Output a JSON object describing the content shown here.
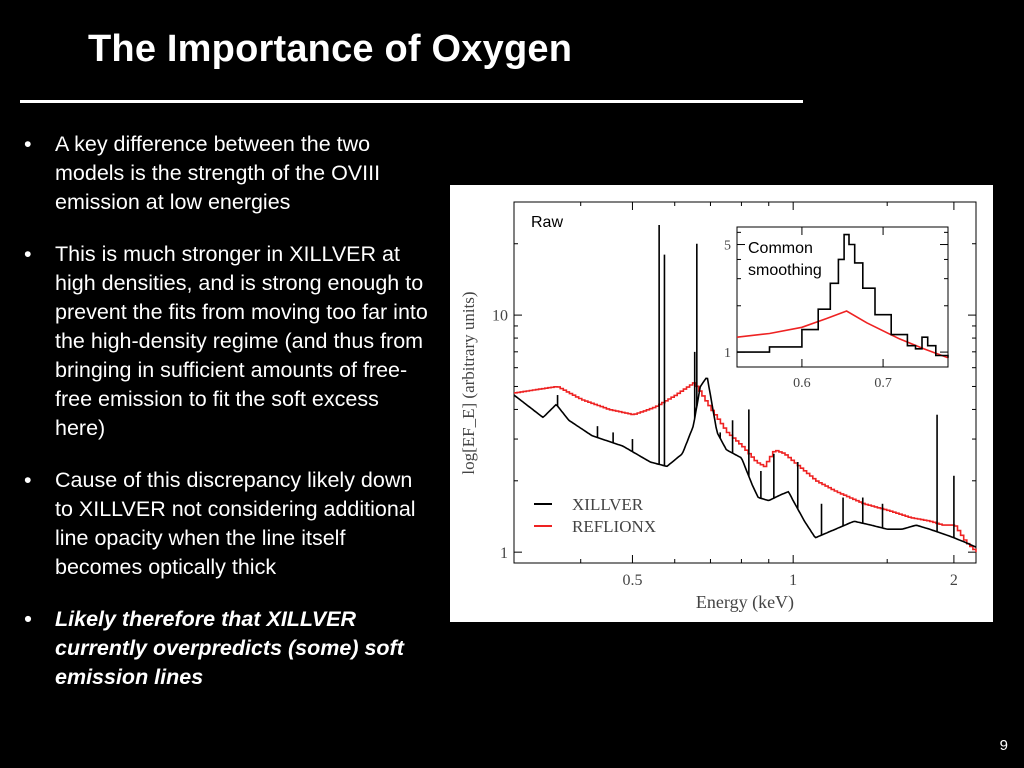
{
  "slide": {
    "title": "The Importance of Oxygen",
    "page_number": "9"
  },
  "bullets": [
    {
      "text": "A key difference between the two models is the strength of the OVIII emission at low energies",
      "emphasis": false
    },
    {
      "text": "This is much stronger in XILLVER at high densities, and is strong enough to prevent the fits from moving too far into the high-density regime (and thus from bringing in sufficient amounts of free-free emission to fit the soft excess here)",
      "emphasis": false
    },
    {
      "text": "Cause of this discrepancy likely down to XILLVER not considering additional line opacity when the line itself becomes optically thick",
      "emphasis": false
    },
    {
      "text": "Likely therefore that XILLVER currently overpredicts (some) soft emission lines",
      "emphasis": true
    }
  ],
  "bullet_marker": "•",
  "colors": {
    "background": "#000000",
    "text": "#ffffff",
    "xillver": "#000000",
    "reflionx": "#ee2222",
    "figure_bg": "#ffffff"
  },
  "chart_data": [
    {
      "type": "line",
      "panel": "main",
      "annotation": "Raw",
      "xlabel": "Energy (keV)",
      "ylabel": "log[EF_E] (arbitrary units)",
      "x_scale": "log",
      "y_scale": "log",
      "xlim": [
        0.3,
        2.2
      ],
      "ylim": [
        0.9,
        30
      ],
      "x_ticks": [
        0.5,
        1,
        2
      ],
      "x_tick_labels": [
        "0.5",
        "1",
        "2"
      ],
      "y_ticks": [
        1,
        10
      ],
      "y_tick_labels": [
        "1",
        "10"
      ],
      "legend": {
        "location": "lower-left",
        "entries": [
          "XILLVER",
          "REFLIONX"
        ]
      },
      "series": [
        {
          "name": "XILLVER",
          "color": "#000000",
          "x": [
            0.3,
            0.34,
            0.36,
            0.38,
            0.42,
            0.48,
            0.54,
            0.58,
            0.62,
            0.65,
            0.67,
            0.69,
            0.72,
            0.75,
            0.8,
            0.84,
            0.86,
            0.9,
            0.95,
            0.98,
            1.0,
            1.05,
            1.1,
            1.2,
            1.3,
            1.4,
            1.5,
            1.6,
            1.7,
            1.8,
            1.9,
            2.0,
            2.1,
            2.2
          ],
          "y": [
            4.6,
            3.7,
            4.2,
            3.6,
            3.1,
            2.8,
            2.4,
            2.3,
            2.6,
            3.4,
            5.0,
            5.5,
            3.2,
            2.7,
            2.5,
            1.9,
            1.7,
            1.65,
            1.75,
            1.8,
            1.65,
            1.35,
            1.15,
            1.25,
            1.35,
            1.3,
            1.25,
            1.25,
            1.3,
            1.25,
            1.2,
            1.15,
            1.1,
            1.05
          ],
          "lines": [
            {
              "x": 0.362,
              "peak": 4.6
            },
            {
              "x": 0.43,
              "peak": 3.4
            },
            {
              "x": 0.46,
              "peak": 3.2
            },
            {
              "x": 0.5,
              "peak": 3.0
            },
            {
              "x": 0.561,
              "peak": 24
            },
            {
              "x": 0.574,
              "peak": 18
            },
            {
              "x": 0.654,
              "peak": 7
            },
            {
              "x": 0.66,
              "peak": 20
            },
            {
              "x": 0.73,
              "peak": 3.2
            },
            {
              "x": 0.77,
              "peak": 3.6
            },
            {
              "x": 0.826,
              "peak": 4.0
            },
            {
              "x": 0.87,
              "peak": 2.2
            },
            {
              "x": 0.92,
              "peak": 2.6
            },
            {
              "x": 1.02,
              "peak": 2.4
            },
            {
              "x": 1.13,
              "peak": 1.6
            },
            {
              "x": 1.24,
              "peak": 1.7
            },
            {
              "x": 1.35,
              "peak": 1.7
            },
            {
              "x": 1.47,
              "peak": 1.6
            },
            {
              "x": 1.86,
              "peak": 3.8
            },
            {
              "x": 2.0,
              "peak": 2.1
            }
          ]
        },
        {
          "name": "REFLIONX",
          "color": "#ee2222",
          "x": [
            0.3,
            0.36,
            0.4,
            0.45,
            0.5,
            0.55,
            0.6,
            0.65,
            0.7,
            0.75,
            0.8,
            0.85,
            0.88,
            0.92,
            0.96,
            1.0,
            1.1,
            1.2,
            1.35,
            1.5,
            1.65,
            1.8,
            1.9,
            2.0,
            2.1,
            2.2
          ],
          "y": [
            4.7,
            5.0,
            4.4,
            4.0,
            3.8,
            4.1,
            4.6,
            5.2,
            4.0,
            3.2,
            2.8,
            2.4,
            2.3,
            2.7,
            2.6,
            2.4,
            2.0,
            1.8,
            1.6,
            1.5,
            1.4,
            1.35,
            1.3,
            1.3,
            1.1,
            1.0
          ]
        }
      ]
    },
    {
      "type": "line",
      "panel": "inset",
      "annotation": "Common smoothing",
      "x_scale": "linear",
      "y_scale": "log",
      "xlim": [
        0.52,
        0.78
      ],
      "ylim": [
        0.8,
        6.5
      ],
      "x_ticks": [
        0.6,
        0.7
      ],
      "x_tick_labels": [
        "0.6",
        "0.7"
      ],
      "y_ticks": [
        1,
        5
      ],
      "y_tick_labels": [
        "1",
        "5"
      ],
      "series": [
        {
          "name": "XILLVER",
          "color": "#000000",
          "x": [
            0.52,
            0.56,
            0.6,
            0.62,
            0.635,
            0.645,
            0.652,
            0.658,
            0.665,
            0.675,
            0.69,
            0.71,
            0.73,
            0.74,
            0.748,
            0.755,
            0.765,
            0.78
          ],
          "y": [
            1.0,
            1.08,
            1.4,
            1.9,
            2.8,
            4.0,
            5.8,
            5.0,
            3.8,
            2.6,
            1.75,
            1.3,
            1.1,
            1.05,
            1.25,
            1.1,
            0.95,
            0.92
          ]
        },
        {
          "name": "REFLIONX",
          "color": "#ee2222",
          "x": [
            0.52,
            0.56,
            0.6,
            0.63,
            0.655,
            0.68,
            0.72,
            0.75,
            0.78
          ],
          "y": [
            1.25,
            1.32,
            1.45,
            1.65,
            1.85,
            1.55,
            1.22,
            1.05,
            0.92
          ]
        }
      ]
    }
  ]
}
